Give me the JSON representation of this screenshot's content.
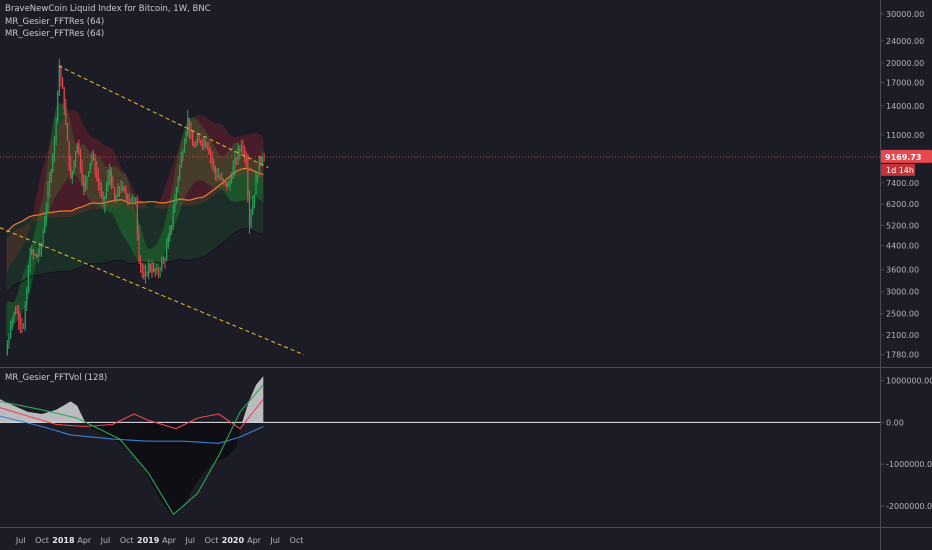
{
  "header": {
    "title": "BraveNewCoin Liquid Index for Bitcoin, 1W, BNC",
    "indicators": [
      "MR_Gesier_FFTRes (64)",
      "MR_Gesier_FFTRes (64)"
    ],
    "sub_indicator": "MR_Gesier_FFTVol (128)"
  },
  "price_tag": {
    "value": "9169.73",
    "countdown": "1d 14h"
  },
  "colors": {
    "background": "#1c1c27",
    "bull": "#26a65b",
    "bear": "#e5484d",
    "green_band": "#1f8f2f",
    "red_band": "#a8202c",
    "trend_line": "#e6c229",
    "price_line": "#e5484d",
    "ma_line": "#f07b2a",
    "blue_line": "#3b7fd4"
  },
  "chart_data": [
    {
      "type": "candlestick",
      "scale": "log",
      "xlabel": "",
      "ylabel": "",
      "ylim": [
        1650,
        32000
      ],
      "y_ticks": [
        "30000.00",
        "24000.00",
        "20000.00",
        "17000.00",
        "14000.00",
        "11000.00",
        "7400.00",
        "6200.00",
        "5200.00",
        "4400.00",
        "3600.00",
        "3000.00",
        "2500.00",
        "2100.00",
        "1780.00"
      ],
      "x_ticks": [
        "Jul",
        "Oct",
        "2018",
        "Apr",
        "Jul",
        "Oct",
        "2019",
        "Apr",
        "Jul",
        "Oct",
        "2020",
        "Apr",
        "Jul",
        "Oct"
      ],
      "last_price": 9169.73,
      "path": [
        [
          "2017-05-01",
          1780
        ],
        [
          "2017-05-22",
          2300
        ],
        [
          "2017-06-12",
          2600
        ],
        [
          "2017-07-17",
          2200
        ],
        [
          "2017-08-14",
          4200
        ],
        [
          "2017-09-11",
          4000
        ],
        [
          "2017-10-02",
          4400
        ],
        [
          "2017-10-30",
          6800
        ],
        [
          "2017-11-27",
          10500
        ],
        [
          "2017-12-18",
          19500
        ],
        [
          "2018-01-08",
          14000
        ],
        [
          "2018-02-05",
          7500
        ],
        [
          "2018-03-05",
          10500
        ],
        [
          "2018-04-02",
          7000
        ],
        [
          "2018-05-07",
          9400
        ],
        [
          "2018-06-25",
          6200
        ],
        [
          "2018-07-23",
          8200
        ],
        [
          "2018-08-13",
          6300
        ],
        [
          "2018-09-03",
          7200
        ],
        [
          "2018-10-15",
          6500
        ],
        [
          "2018-11-12",
          6300
        ],
        [
          "2018-11-26",
          4000
        ],
        [
          "2018-12-17",
          3300
        ],
        [
          "2019-01-07",
          3700
        ],
        [
          "2019-02-11",
          3500
        ],
        [
          "2019-03-18",
          4000
        ],
        [
          "2019-04-15",
          5300
        ],
        [
          "2019-05-13",
          7800
        ],
        [
          "2019-06-24",
          12500
        ],
        [
          "2019-07-15",
          10000
        ],
        [
          "2019-08-19",
          10500
        ],
        [
          "2019-09-16",
          10200
        ],
        [
          "2019-10-21",
          8000
        ],
        [
          "2019-11-25",
          7400
        ],
        [
          "2019-12-16",
          7200
        ],
        [
          "2020-01-13",
          8800
        ],
        [
          "2020-02-10",
          10300
        ],
        [
          "2020-03-02",
          8800
        ],
        [
          "2020-03-16",
          5300
        ],
        [
          "2020-04-06",
          6900
        ],
        [
          "2020-04-27",
          8900
        ],
        [
          "2020-05-11",
          9169.73
        ]
      ],
      "trend_lines": [
        {
          "start": [
            "2017-12-11",
            19500
          ],
          "end": [
            "2020-06-01",
            8400
          ]
        },
        {
          "start": [
            "2017-04-03",
            5100
          ],
          "end": [
            "2020-11-02",
            1780
          ]
        }
      ]
    },
    {
      "type": "area",
      "title": "MR_Gesier_FFTVol (128)",
      "ylim": [
        -2500000,
        1250000
      ],
      "y_ticks": [
        "1000000.00",
        "0.00",
        "-1000000.00",
        "-2000000.00"
      ],
      "volume_area": [
        [
          "2017-04-03",
          550000
        ],
        [
          "2017-06-01",
          400000
        ],
        [
          "2017-08-01",
          250000
        ],
        [
          "2017-10-01",
          200000
        ],
        [
          "2017-12-01",
          300000
        ],
        [
          "2018-02-01",
          500000
        ],
        [
          "2018-03-01",
          400000
        ],
        [
          "2018-04-05",
          0
        ],
        [
          "2018-05-01",
          -150000
        ],
        [
          "2018-07-01",
          -300000
        ],
        [
          "2018-09-01",
          -500000
        ],
        [
          "2018-11-01",
          -800000
        ],
        [
          "2019-01-01",
          -1300000
        ],
        [
          "2019-03-01",
          -1900000
        ],
        [
          "2019-04-20",
          -2250000
        ],
        [
          "2019-06-01",
          -2000000
        ],
        [
          "2019-08-01",
          -1400000
        ],
        [
          "2019-10-01",
          -1000000
        ],
        [
          "2019-12-01",
          -850000
        ],
        [
          "2020-01-15",
          -600000
        ],
        [
          "2020-02-10",
          0
        ],
        [
          "2020-03-10",
          500000
        ],
        [
          "2020-04-10",
          900000
        ],
        [
          "2020-05-11",
          1100000
        ]
      ],
      "series": [
        {
          "color": "#e5484d",
          "points": [
            [
              "2017-04-03",
              350000
            ],
            [
              "2017-08-01",
              150000
            ],
            [
              "2017-12-01",
              -50000
            ],
            [
              "2018-04-01",
              -100000
            ],
            [
              "2018-08-01",
              -50000
            ],
            [
              "2018-11-01",
              200000
            ],
            [
              "2019-01-01",
              50000
            ],
            [
              "2019-05-01",
              -150000
            ],
            [
              "2019-08-01",
              100000
            ],
            [
              "2019-11-01",
              200000
            ],
            [
              "2020-02-01",
              -150000
            ],
            [
              "2020-05-11",
              550000
            ]
          ]
        },
        {
          "color": "#3b7fd4",
          "points": [
            [
              "2017-04-03",
              150000
            ],
            [
              "2017-10-01",
              -100000
            ],
            [
              "2018-02-01",
              -300000
            ],
            [
              "2018-08-01",
              -400000
            ],
            [
              "2019-01-01",
              -450000
            ],
            [
              "2019-06-01",
              -450000
            ],
            [
              "2019-11-01",
              -500000
            ],
            [
              "2020-02-01",
              -350000
            ],
            [
              "2020-05-11",
              -100000
            ]
          ]
        },
        {
          "color": "#2fa84f",
          "points": [
            [
              "2017-04-03",
              500000
            ],
            [
              "2017-10-01",
              300000
            ],
            [
              "2018-03-01",
              100000
            ],
            [
              "2018-09-01",
              -400000
            ],
            [
              "2019-01-01",
              -1200000
            ],
            [
              "2019-04-20",
              -2200000
            ],
            [
              "2019-08-01",
              -1700000
            ],
            [
              "2019-11-01",
              -800000
            ],
            [
              "2020-02-01",
              250000
            ],
            [
              "2020-05-11",
              900000
            ]
          ]
        }
      ]
    }
  ]
}
